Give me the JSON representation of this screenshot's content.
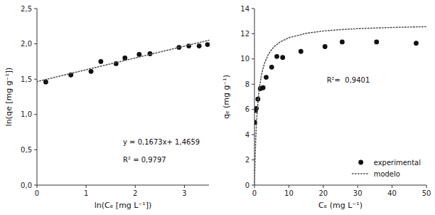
{
  "chart_data": [
    {
      "type": "scatter",
      "x_label": "ln(Cₑ [mg L⁻¹])",
      "y_label": "ln(qe [mg g⁻¹])",
      "annotations": [
        "y = 0,1673x+ 1,4659",
        "R² = 0,9797"
      ],
      "series": [
        {
          "type": "scatter",
          "marker": "circle",
          "color": "#111111",
          "x": [
            0.18,
            0.69,
            1.1,
            1.3,
            1.61,
            1.79,
            2.08,
            2.3,
            2.89,
            3.09,
            3.3,
            3.47
          ],
          "values": [
            1.46,
            1.56,
            1.61,
            1.75,
            1.72,
            1.8,
            1.85,
            1.86,
            1.95,
            1.97,
            1.97,
            1.99
          ]
        },
        {
          "type": "line",
          "line_style": "dotted",
          "color": "#555555",
          "x": [
            0,
            3.5
          ],
          "values": [
            1.4659,
            2.05145
          ]
        }
      ],
      "xlim": [
        0,
        3.5
      ],
      "ylim": [
        0,
        2.5
      ],
      "xticks": [
        0,
        1,
        2,
        3
      ],
      "yticks": [
        {
          "value": 0,
          "label": "0,0"
        },
        {
          "value": 0.5,
          "label": "0,5"
        },
        {
          "value": 1.0,
          "label": "1,0"
        },
        {
          "value": 1.5,
          "label": "1,5"
        },
        {
          "value": 2.0,
          "label": "2,0"
        },
        {
          "value": 2.5,
          "label": "2,5"
        }
      ],
      "grid": false
    },
    {
      "type": "scatter",
      "x_label": "Cₑ (mg L⁻¹)",
      "y_label": "qₑ (mg g⁻¹)",
      "annotations": [
        "R²=  0,9401"
      ],
      "series": [
        {
          "name": "experimental",
          "type": "scatter",
          "marker": "circle",
          "color": "#111111",
          "x": [
            0.1,
            0.3,
            0.55,
            1.0,
            1.7,
            2.5,
            3.4,
            5.0,
            6.5,
            8.2,
            13.5,
            20.5,
            25.5,
            35.5,
            47.0
          ],
          "values": [
            4.97,
            5.92,
            6.08,
            6.82,
            7.65,
            7.72,
            8.55,
            9.35,
            10.2,
            10.12,
            10.6,
            10.98,
            11.35,
            11.35,
            11.25
          ]
        },
        {
          "name": "modelo",
          "type": "line",
          "line_style": "dotted",
          "color": "#555555",
          "x": [
            0,
            0.05,
            0.1,
            0.2,
            0.3,
            0.4,
            0.5,
            0.6,
            0.75,
            1,
            1.25,
            1.5,
            2,
            2.5,
            3,
            4,
            5,
            6,
            7.5,
            10,
            15,
            20,
            25,
            30,
            40,
            50
          ],
          "values": [
            0,
            0.6385,
            1.2163,
            2.2215,
            3.0662,
            3.7859,
            4.4066,
            4.9472,
            5.6392,
            6.5561,
            7.2649,
            7.8291,
            8.671,
            9.269,
            9.7157,
            10.3385,
            10.752,
            11.0466,
            11.3577,
            11.687,
            12.0358,
            12.2182,
            12.3303,
            12.4062,
            12.5023,
            12.5607
          ]
        }
      ],
      "xlim": [
        0,
        50
      ],
      "ylim": [
        0,
        14
      ],
      "xticks": [
        0,
        10,
        20,
        30,
        40,
        50
      ],
      "yticks": [
        0,
        2,
        4,
        6,
        8,
        10,
        12,
        14
      ],
      "legend": "lower right",
      "grid": false
    }
  ]
}
